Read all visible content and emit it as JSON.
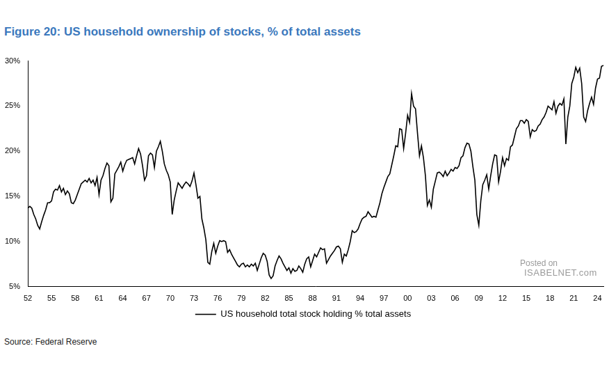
{
  "chart_data": {
    "type": "line",
    "title": "Figure 20: US household ownership of stocks, % of total assets",
    "source": "Source: Federal Reserve",
    "annotations": [
      "Posted on",
      "ISABELNET.com"
    ],
    "categories": [
      "52",
      null,
      null,
      null,
      null,
      null,
      null,
      null,
      null,
      null,
      null,
      null,
      "55",
      null,
      null,
      null,
      null,
      null,
      null,
      null,
      null,
      null,
      null,
      null,
      "58",
      null,
      null,
      null,
      null,
      null,
      null,
      null,
      null,
      null,
      null,
      null,
      "61",
      null,
      null,
      null,
      null,
      null,
      null,
      null,
      null,
      null,
      null,
      null,
      "64",
      null,
      null,
      null,
      null,
      null,
      null,
      null,
      null,
      null,
      null,
      null,
      "67",
      null,
      null,
      null,
      null,
      null,
      null,
      null,
      null,
      null,
      null,
      null,
      "70",
      null,
      null,
      null,
      null,
      null,
      null,
      null,
      null,
      null,
      null,
      null,
      "73",
      null,
      null,
      null,
      null,
      null,
      null,
      null,
      null,
      null,
      null,
      null,
      "76",
      null,
      null,
      null,
      null,
      null,
      null,
      null,
      null,
      null,
      null,
      null,
      "79",
      null,
      null,
      null,
      null,
      null,
      null,
      null,
      null,
      null,
      null,
      null,
      "82",
      null,
      null,
      null,
      null,
      null,
      null,
      null,
      null,
      null,
      null,
      null,
      "85",
      null,
      null,
      null,
      null,
      null,
      null,
      null,
      null,
      null,
      null,
      null,
      "88",
      null,
      null,
      null,
      null,
      null,
      null,
      null,
      null,
      null,
      null,
      null,
      "91",
      null,
      null,
      null,
      null,
      null,
      null,
      null,
      null,
      null,
      null,
      null,
      "94",
      null,
      null,
      null,
      null,
      null,
      null,
      null,
      null,
      null,
      null,
      null,
      "97",
      null,
      null,
      null,
      null,
      null,
      null,
      null,
      null,
      null,
      null,
      null,
      "00",
      null,
      null,
      null,
      null,
      null,
      null,
      null,
      null,
      null,
      null,
      null,
      "03",
      null,
      null,
      null,
      null,
      null,
      null,
      null,
      null,
      null,
      null,
      null,
      "06",
      null,
      null,
      null,
      null,
      null,
      null,
      null,
      null,
      null,
      null,
      null,
      "09",
      null,
      null,
      null,
      null,
      null,
      null,
      null,
      null,
      null,
      null,
      null,
      "12",
      null,
      null,
      null,
      null,
      null,
      null,
      null,
      null,
      null,
      null,
      null,
      "15",
      null,
      null,
      null,
      null,
      null,
      null,
      null,
      null,
      null,
      null,
      null,
      "18",
      null,
      null,
      null,
      null,
      null,
      null,
      null,
      null,
      null,
      null,
      null,
      "21",
      null,
      null,
      null,
      null,
      null,
      null,
      null,
      null,
      null,
      null,
      null,
      "24",
      null,
      null,
      null
    ],
    "series": [
      {
        "name": "US household total stock holding % total assets",
        "color": "#000000",
        "values": [
          13.7,
          13.9,
          13.7,
          13.0,
          12.5,
          11.8,
          11.4,
          12.2,
          12.9,
          13.5,
          14.3,
          14.3,
          14.5,
          15.5,
          15.8,
          15.7,
          16.2,
          15.5,
          15.9,
          15.2,
          15.6,
          15.3,
          14.3,
          14.2,
          14.6,
          15.2,
          15.8,
          16.4,
          16.6,
          16.8,
          16.6,
          17.0,
          16.5,
          16.8,
          16.2,
          17.1,
          15.2,
          16.8,
          17.3,
          18.1,
          18.7,
          18.4,
          14.4,
          14.8,
          17.5,
          17.9,
          18.3,
          18.8,
          17.8,
          18.5,
          19.0,
          19.1,
          19.2,
          19.3,
          18.6,
          19.5,
          20.3,
          19.7,
          18.4,
          16.8,
          17.3,
          19.5,
          19.8,
          19.6,
          18.2,
          20.0,
          20.5,
          21.1,
          20.0,
          18.6,
          17.9,
          17.4,
          16.6,
          13.0,
          14.6,
          15.6,
          16.5,
          16.2,
          15.9,
          16.3,
          16.6,
          16.4,
          16.1,
          16.7,
          17.6,
          16.3,
          14.8,
          15.0,
          12.5,
          11.5,
          10.2,
          7.7,
          7.5,
          8.9,
          9.8,
          8.7,
          9.5,
          10.1,
          10.0,
          10.1,
          10.0,
          8.8,
          9.1,
          8.6,
          8.2,
          7.8,
          7.4,
          7.2,
          7.5,
          7.6,
          7.2,
          7.4,
          7.2,
          7.5,
          7.3,
          7.6,
          6.8,
          7.5,
          8.2,
          8.7,
          8.5,
          7.8,
          6.3,
          5.9,
          6.2,
          7.3,
          7.9,
          8.4,
          8.1,
          7.6,
          7.2,
          6.8,
          7.1,
          6.5,
          7.0,
          6.7,
          6.8,
          7.3,
          7.0,
          6.6,
          7.5,
          8.1,
          8.3,
          7.2,
          7.9,
          8.6,
          8.3,
          8.8,
          9.3,
          9.1,
          9.2,
          7.6,
          8.0,
          8.4,
          8.7,
          9.0,
          9.4,
          9.5,
          9.2,
          7.7,
          8.6,
          8.4,
          9.1,
          10.0,
          11.2,
          11.0,
          11.1,
          11.4,
          12.0,
          12.5,
          12.7,
          12.8,
          13.3,
          13.0,
          12.7,
          12.8,
          12.7,
          13.5,
          14.3,
          15.3,
          16.0,
          16.6,
          17.2,
          17.5,
          18.5,
          19.5,
          20.6,
          20.5,
          22.5,
          22.4,
          20.3,
          22.0,
          24.0,
          23.2,
          26.4,
          25.0,
          24.7,
          22.0,
          19.5,
          20.6,
          19.3,
          17.3,
          14.0,
          14.6,
          13.8,
          15.8,
          16.7,
          17.6,
          17.7,
          17.5,
          17.2,
          17.8,
          17.3,
          17.6,
          18.0,
          17.8,
          18.2,
          18.1,
          18.4,
          19.3,
          19.5,
          20.4,
          20.9,
          20.8,
          20.0,
          18.3,
          16.8,
          13.0,
          11.8,
          14.5,
          16.3,
          16.8,
          17.4,
          15.8,
          17.3,
          18.6,
          19.6,
          19.5,
          16.6,
          17.8,
          19.3,
          18.4,
          19.2,
          19.0,
          20.5,
          20.7,
          21.6,
          22.5,
          22.8,
          23.4,
          23.4,
          23.1,
          23.5,
          23.3,
          21.6,
          22.4,
          22.2,
          22.3,
          22.8,
          23.0,
          23.5,
          23.8,
          24.3,
          25.0,
          24.8,
          24.6,
          25.5,
          24.2,
          25.0,
          25.3,
          25.1,
          25.8,
          20.8,
          23.8,
          25.0,
          27.5,
          28.2,
          29.3,
          28.7,
          29.2,
          27.5,
          23.8,
          23.3,
          24.5,
          25.3,
          26.0,
          25.2,
          27.0,
          28.0,
          28.1,
          29.4,
          29.5
        ]
      }
    ],
    "ylim": [
      5,
      30
    ],
    "yticks": [
      {
        "value": 5,
        "label": "5%"
      },
      {
        "value": 10,
        "label": "10%"
      },
      {
        "value": 15,
        "label": "15%"
      },
      {
        "value": 20,
        "label": "20%"
      },
      {
        "value": 25,
        "label": "25%"
      },
      {
        "value": 30,
        "label": "30%"
      }
    ],
    "grid": false,
    "legend": "bottom"
  }
}
